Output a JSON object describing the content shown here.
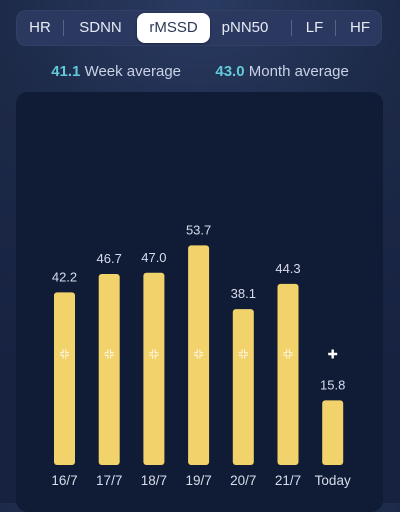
{
  "tabs": [
    {
      "label": "HR",
      "active": false
    },
    {
      "label": "SDNN",
      "active": false
    },
    {
      "label": "rMSSD",
      "active": true
    },
    {
      "label": "pNN50",
      "active": false
    },
    {
      "label": "LF",
      "active": false
    },
    {
      "label": "HF",
      "active": false
    }
  ],
  "averages": {
    "week": {
      "value": "41.1",
      "label": "Week average"
    },
    "month": {
      "value": "43.0",
      "label": "Month average"
    }
  },
  "colors": {
    "bar": "#f2d36b",
    "accent": "#62c9d9",
    "panel": "#101b35"
  },
  "chart_data": {
    "type": "bar",
    "categories": [
      "16/7",
      "17/7",
      "18/7",
      "19/7",
      "20/7",
      "21/7",
      "Today"
    ],
    "values": [
      42.2,
      46.7,
      47.0,
      53.7,
      38.1,
      44.3,
      15.8
    ],
    "value_labels": [
      "42.2",
      "46.7",
      "47.0",
      "53.7",
      "38.1",
      "44.3",
      "15.8"
    ],
    "title": "",
    "xlabel": "",
    "ylabel": "",
    "grid": false,
    "icons": [
      "plus-icon",
      "plus-icon",
      "plus-icon",
      "plus-icon",
      "plus-icon",
      "plus-icon",
      "plus-icon"
    ]
  }
}
